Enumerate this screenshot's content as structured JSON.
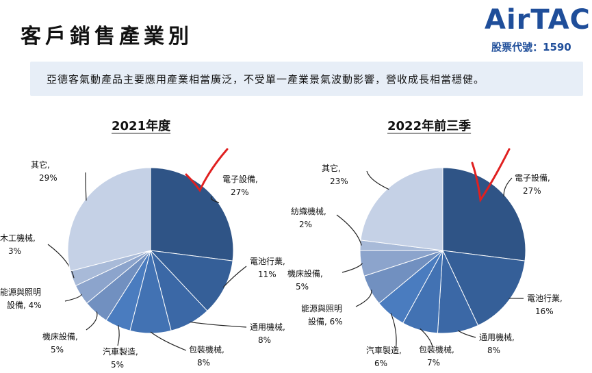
{
  "header": {
    "title": "客戶銷售產業別",
    "brand_logo": "AirTAC",
    "stock_code": "股票代號：1590"
  },
  "banner": {
    "text": "亞德客氣動產品主要應用產業相當廣泛，不受單一產業景氣波動影響，營收成長相當穩健。"
  },
  "colors": {
    "accent": "#1f4e9a",
    "banner_bg": "#e7eef7",
    "annotation": "#e02020"
  },
  "chart_data": [
    {
      "type": "pie",
      "title": "2021年度",
      "slices": [
        {
          "name": "電子設備,",
          "value": 27,
          "label": "27%",
          "color": "#2f5486"
        },
        {
          "name": "電池行業,",
          "value": 11,
          "label": "11%",
          "color": "#355f98"
        },
        {
          "name": "通用機械,",
          "value": 8,
          "label": "8%",
          "color": "#3b68a6"
        },
        {
          "name": "包裝機械,",
          "value": 8,
          "label": "8%",
          "color": "#4272b3"
        },
        {
          "name": "汽車製造,",
          "value": 5,
          "label": "5%",
          "color": "#4a7cbf"
        },
        {
          "name": "機床設備,",
          "value": 5,
          "label": "5%",
          "color": "#7190c0"
        },
        {
          "name": "能源與照明",
          "name2": "設備,",
          "value": 4,
          "label": "4%",
          "color": "#8ca4cc"
        },
        {
          "name": "木工機械,",
          "value": 3,
          "label": "3%",
          "color": "#a8bad8"
        },
        {
          "name": "其它,",
          "value": 29,
          "label": "29%",
          "color": "#c5d1e6"
        }
      ]
    },
    {
      "type": "pie",
      "title": "2022年前三季",
      "slices": [
        {
          "name": "電子設備,",
          "value": 27,
          "label": "27%",
          "color": "#2f5486"
        },
        {
          "name": "電池行業,",
          "value": 16,
          "label": "16%",
          "color": "#355f98"
        },
        {
          "name": "通用機械,",
          "value": 8,
          "label": "8%",
          "color": "#3b68a6"
        },
        {
          "name": "包裝機械,",
          "value": 7,
          "label": "7%",
          "color": "#4272b3"
        },
        {
          "name": "汽車製造,",
          "value": 6,
          "label": "6%",
          "color": "#4a7cbf"
        },
        {
          "name": "能源與照明",
          "name2": "設備,",
          "value": 6,
          "label": "6%",
          "color": "#7190c0"
        },
        {
          "name": "機床設備,",
          "value": 5,
          "label": "5%",
          "color": "#8ca4cc"
        },
        {
          "name": "紡織機械,",
          "value": 2,
          "label": "2%",
          "color": "#a8bad8"
        },
        {
          "name": "其它,",
          "value": 23,
          "label": "23%",
          "color": "#c5d1e6"
        }
      ]
    }
  ]
}
